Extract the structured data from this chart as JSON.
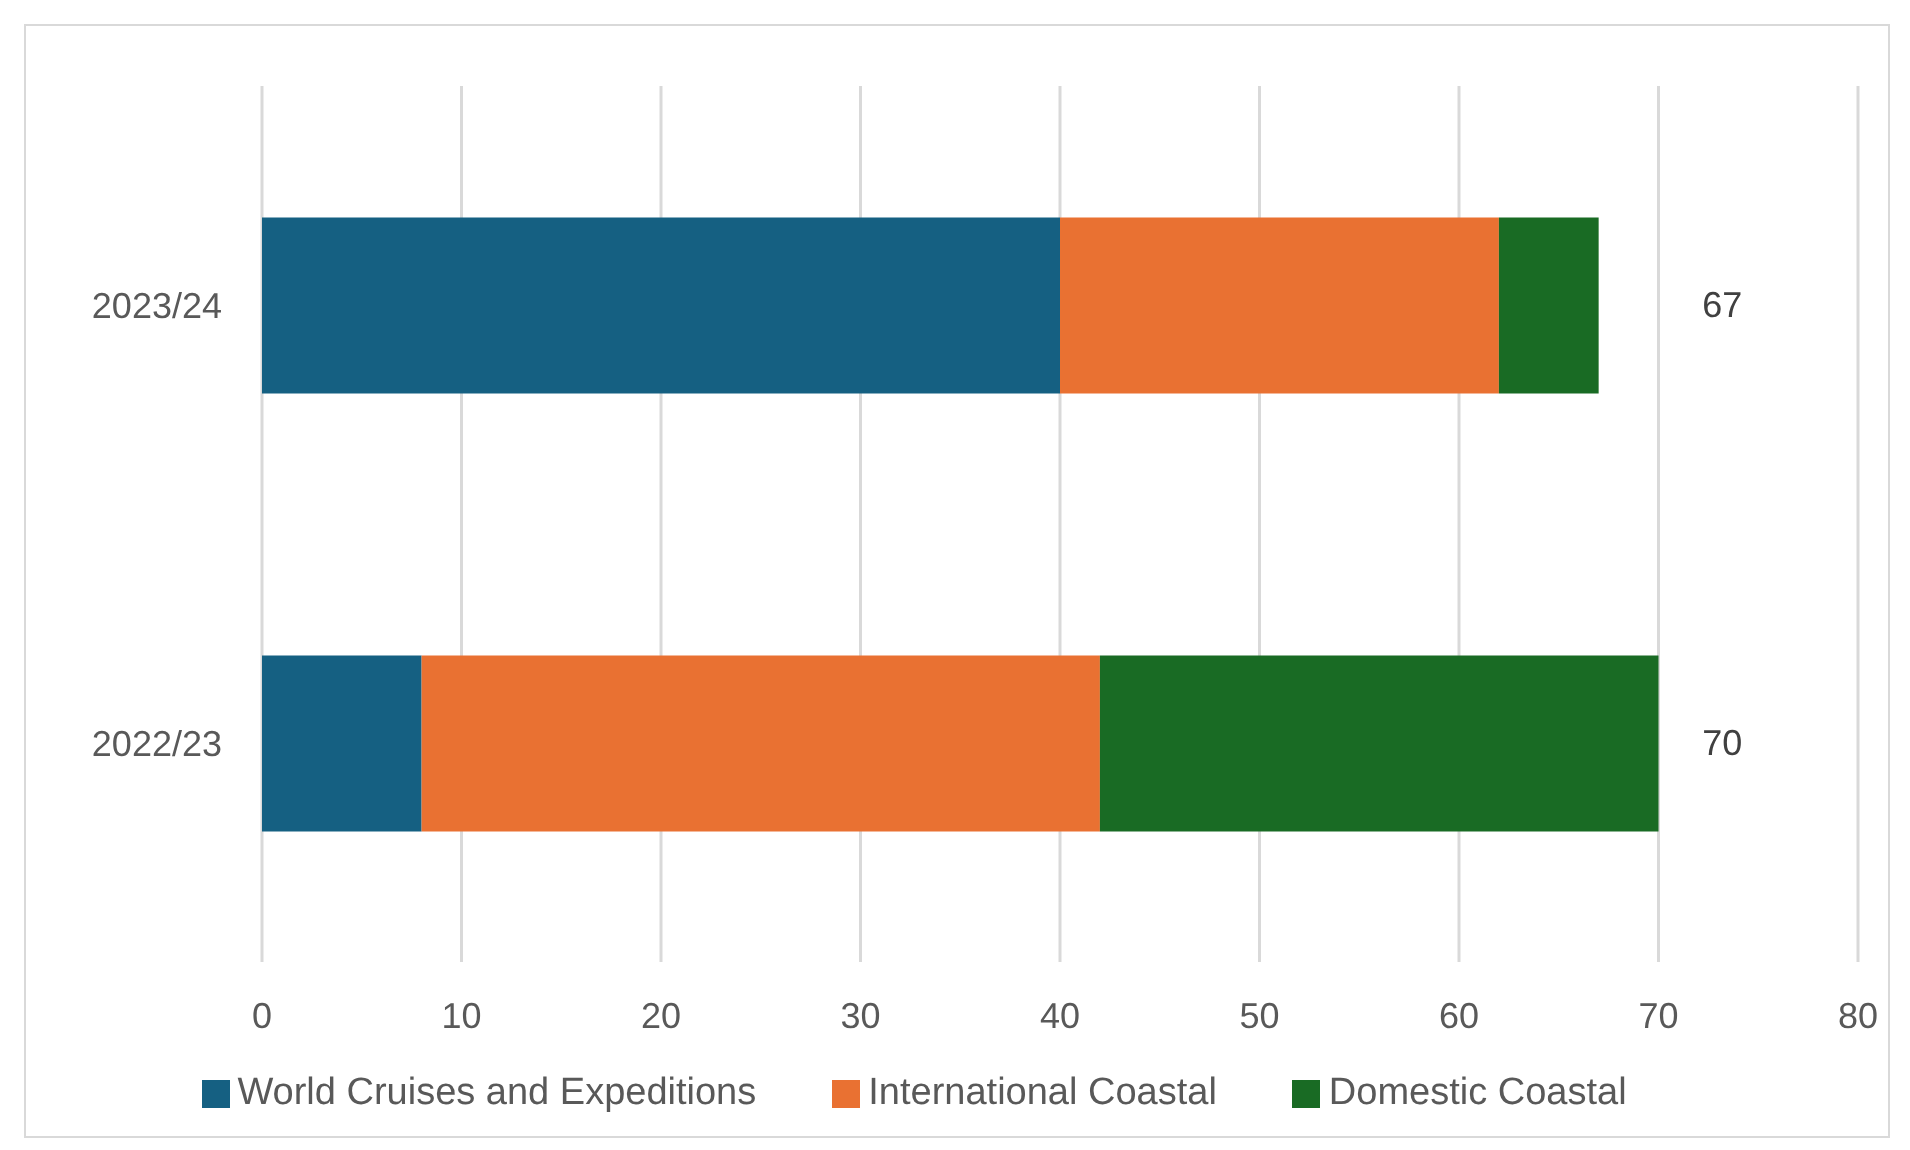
{
  "chart_data": {
    "type": "bar",
    "orientation": "horizontal",
    "stacked": true,
    "categories": [
      "2023/24",
      "2022/23"
    ],
    "series": [
      {
        "name": "World Cruises and Expeditions",
        "color": "#156082",
        "values": [
          40,
          8
        ]
      },
      {
        "name": "International Coastal",
        "color": "#e97132",
        "values": [
          22,
          34
        ]
      },
      {
        "name": "Domestic Coastal",
        "color": "#196b24",
        "values": [
          5,
          28
        ]
      }
    ],
    "totals": [
      "67",
      "70"
    ],
    "xlim": [
      0,
      80
    ],
    "xticks": [
      0,
      10,
      20,
      30,
      40,
      50,
      60,
      70,
      80
    ],
    "grid": "x",
    "legend": "bottom"
  }
}
